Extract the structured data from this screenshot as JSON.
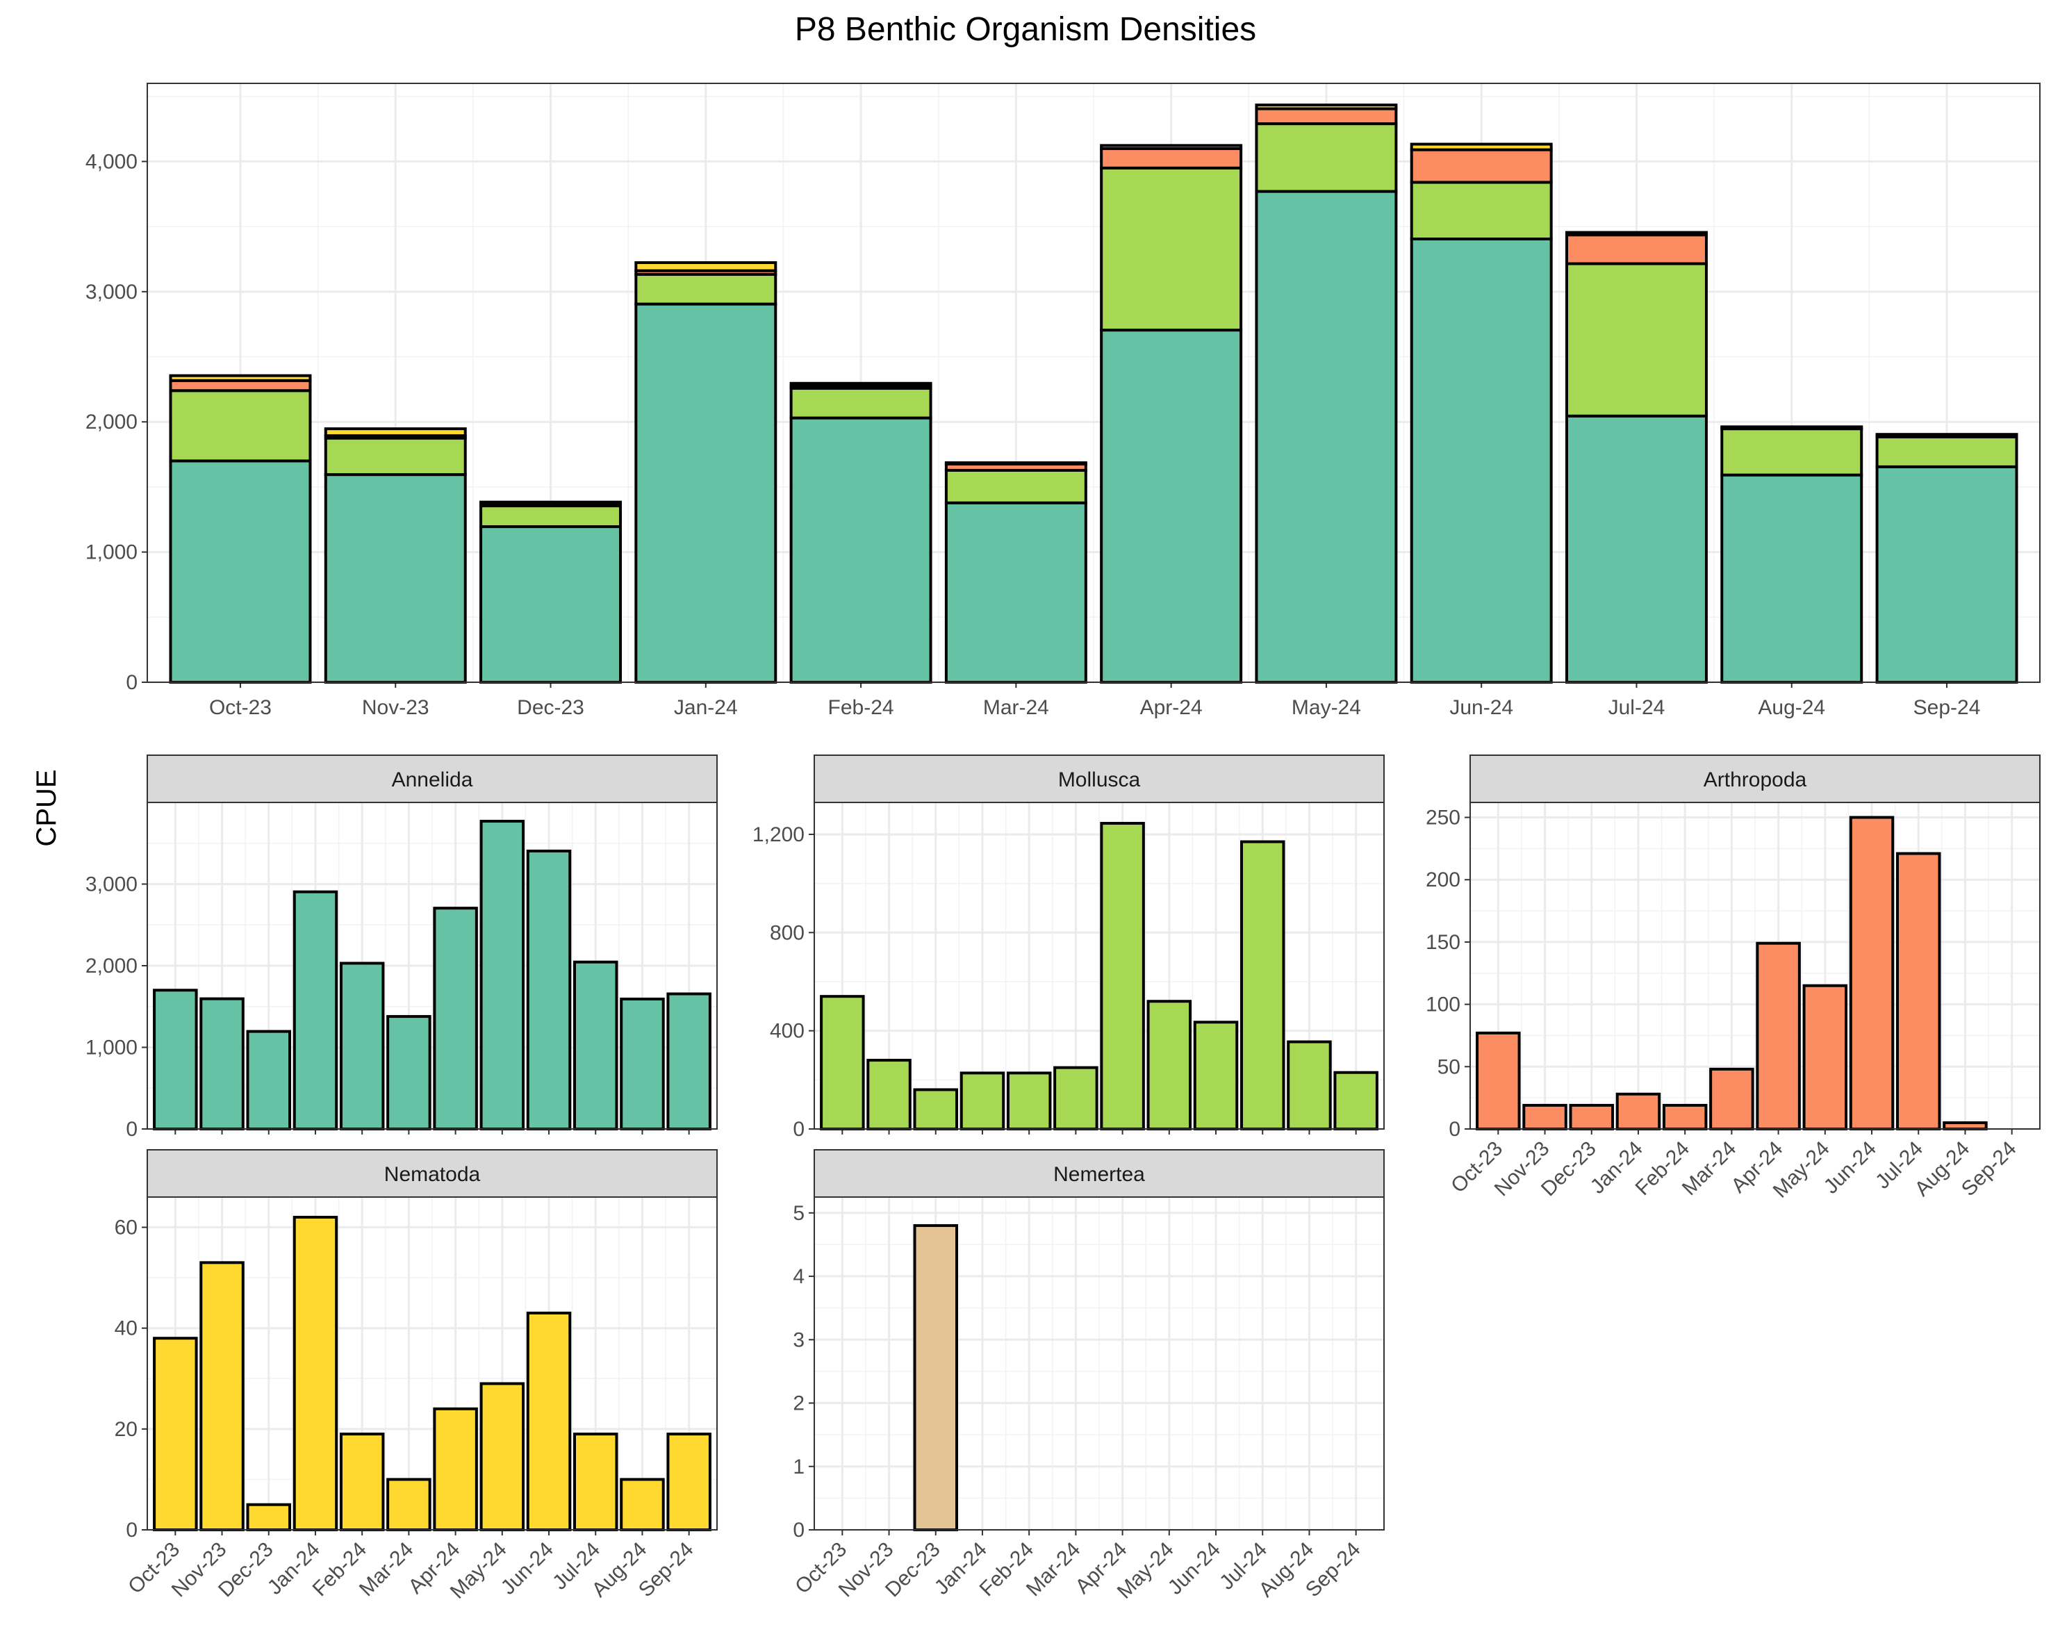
{
  "chart_data": {
    "type": "bar",
    "title": "P8 Benthic Organism Densities",
    "ylabel": "CPUE",
    "xlabel": "",
    "months": [
      "Oct-23",
      "Nov-23",
      "Dec-23",
      "Jan-24",
      "Feb-24",
      "Mar-24",
      "Apr-24",
      "May-24",
      "Jun-24",
      "Jul-24",
      "Aug-24",
      "Sep-24"
    ],
    "colors": {
      "Annelida": "#66c2a5",
      "Mollusca": "#a6d854",
      "Arthropoda": "#fc8d62",
      "Nematoda": "#ffd92f",
      "Nemertea": "#e5c494"
    },
    "series": [
      {
        "name": "Annelida",
        "values": [
          1700,
          1595,
          1195,
          2905,
          2030,
          1378,
          2705,
          3770,
          3405,
          2045,
          1592,
          1655
        ]
      },
      {
        "name": "Mollusca",
        "values": [
          540,
          280,
          160,
          228,
          228,
          250,
          1245,
          520,
          435,
          1170,
          355,
          230
        ]
      },
      {
        "name": "Arthropoda",
        "values": [
          77,
          19,
          19,
          28,
          19,
          48,
          149,
          115,
          250,
          221,
          5,
          0
        ]
      },
      {
        "name": "Nematoda",
        "values": [
          38,
          53,
          5,
          62,
          19,
          10,
          24,
          29,
          43,
          19,
          10,
          19
        ]
      },
      {
        "name": "Nemertea",
        "values": [
          0,
          0,
          4.8,
          0,
          0,
          0,
          0,
          0,
          0,
          0,
          0,
          0
        ]
      }
    ],
    "stacked_panel": {
      "ylim": [
        0,
        4600
      ],
      "yticks": [
        0,
        1000,
        2000,
        3000,
        4000
      ],
      "ytick_labels": [
        "0",
        "1,000",
        "2,000",
        "3,000",
        "4,000"
      ],
      "stack_order": [
        "Annelida",
        "Mollusca",
        "Arthropoda",
        "Nematoda",
        "Nemertea"
      ]
    },
    "facets": [
      {
        "name": "Annelida",
        "ylim": [
          0,
          4000
        ],
        "yticks": [
          0,
          1000,
          2000,
          3000
        ],
        "ytick_labels": [
          "0",
          "1,000",
          "2,000",
          "3,000"
        ],
        "show_x_labels": false
      },
      {
        "name": "Mollusca",
        "ylim": [
          0,
          1330
        ],
        "yticks": [
          0,
          400,
          800,
          1200
        ],
        "ytick_labels": [
          "0",
          "400",
          "800",
          "1,200"
        ],
        "show_x_labels": false
      },
      {
        "name": "Arthropoda",
        "ylim": [
          0,
          262
        ],
        "yticks": [
          0,
          50,
          100,
          150,
          200,
          250
        ],
        "ytick_labels": [
          "0",
          "50",
          "100",
          "150",
          "200",
          "250"
        ],
        "show_x_labels": true
      },
      {
        "name": "Nematoda",
        "ylim": [
          0,
          66
        ],
        "yticks": [
          0,
          20,
          40,
          60
        ],
        "ytick_labels": [
          "0",
          "20",
          "40",
          "60"
        ],
        "show_x_labels": true
      },
      {
        "name": "Nemertea",
        "ylim": [
          0,
          5.25
        ],
        "yticks": [
          0,
          1,
          2,
          3,
          4,
          5
        ],
        "ytick_labels": [
          "0",
          "1",
          "2",
          "3",
          "4",
          "5"
        ],
        "show_x_labels": true
      }
    ]
  }
}
